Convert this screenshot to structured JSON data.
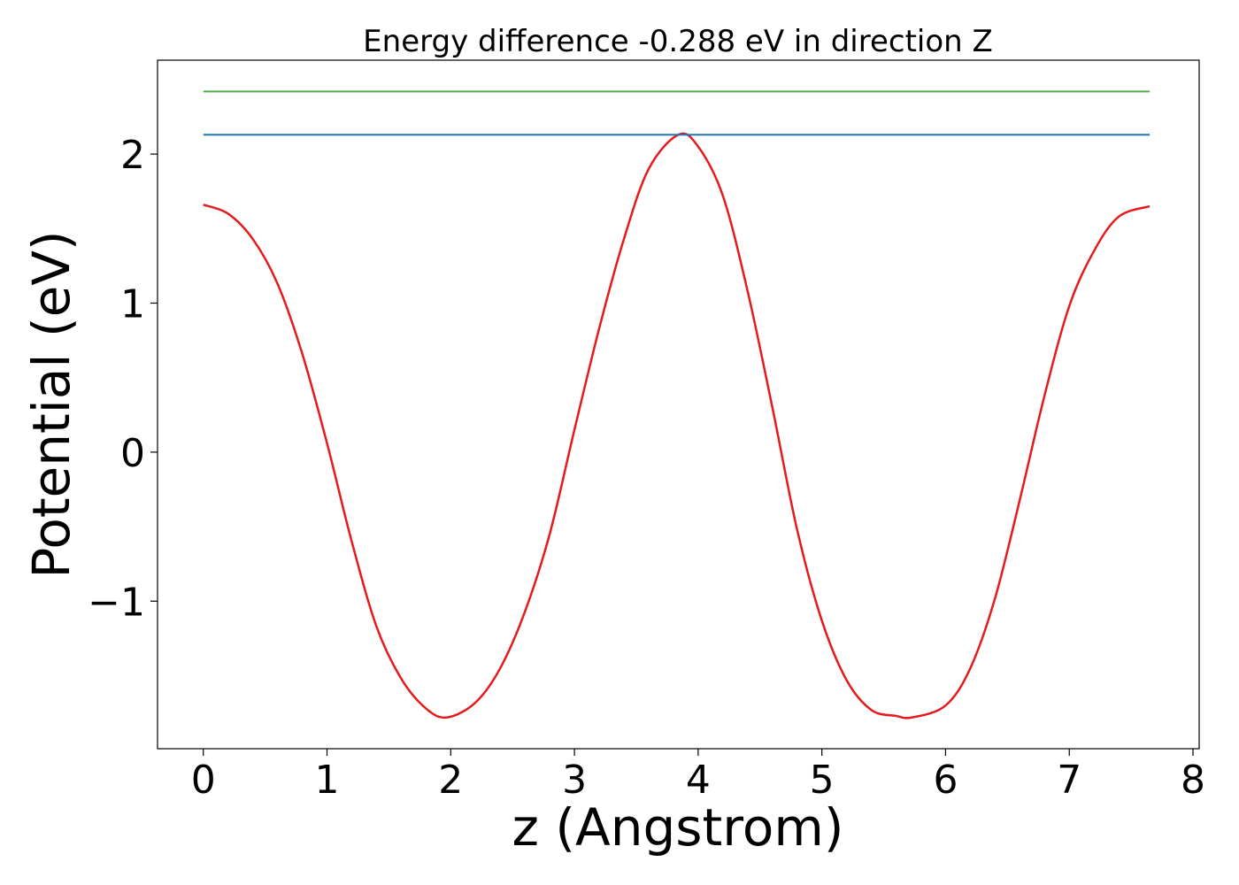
{
  "chart_data": {
    "type": "line",
    "title": "Energy difference -0.288 eV in direction Z",
    "xlabel": "z (Angstrom)",
    "ylabel": "Potential (eV)",
    "xlim": [
      -0.37,
      8.05
    ],
    "ylim": [
      -1.99,
      2.63
    ],
    "x_ticks": [
      0,
      1,
      2,
      3,
      4,
      5,
      6,
      7,
      8
    ],
    "x_tick_labels": [
      "0",
      "1",
      "2",
      "3",
      "4",
      "5",
      "6",
      "7",
      "8"
    ],
    "y_ticks": [
      -1,
      0,
      1,
      2
    ],
    "y_tick_labels": [
      "−1",
      "0",
      "1",
      "2"
    ],
    "grid": false,
    "series": [
      {
        "color": "#e41a1c",
        "x": [
          0.0,
          0.2,
          0.4,
          0.6,
          0.8,
          1.0,
          1.2,
          1.4,
          1.6,
          1.8,
          1.97,
          2.2,
          2.4,
          2.6,
          2.8,
          3.0,
          3.2,
          3.4,
          3.6,
          3.84,
          4.0,
          4.2,
          4.4,
          4.6,
          4.8,
          5.0,
          5.2,
          5.4,
          5.6,
          5.73,
          6.0,
          6.2,
          6.4,
          6.6,
          6.8,
          7.0,
          7.2,
          7.4,
          7.65
        ],
        "y": [
          1.66,
          1.6,
          1.43,
          1.13,
          0.66,
          0.06,
          -0.6,
          -1.17,
          -1.52,
          -1.72,
          -1.78,
          -1.68,
          -1.45,
          -1.07,
          -0.55,
          0.15,
          0.83,
          1.43,
          1.9,
          2.13,
          2.05,
          1.72,
          1.08,
          0.3,
          -0.52,
          -1.13,
          -1.53,
          -1.73,
          -1.77,
          -1.78,
          -1.7,
          -1.45,
          -0.98,
          -0.32,
          0.38,
          0.98,
          1.35,
          1.58,
          1.65
        ]
      },
      {
        "color": "#1f77b4",
        "x": [
          0.0,
          7.65
        ],
        "y": [
          2.13,
          2.13
        ]
      },
      {
        "color": "#4daf4a",
        "x": [
          0.0,
          7.65
        ],
        "y": [
          2.42,
          2.42
        ]
      }
    ]
  }
}
